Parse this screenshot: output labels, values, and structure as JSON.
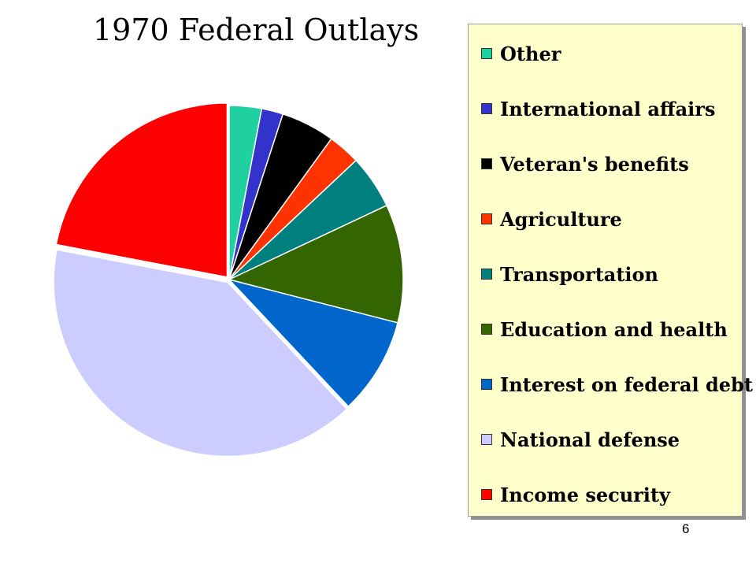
{
  "page_number": "6",
  "chart_data": {
    "type": "pie",
    "title": "1970 Federal Outlays",
    "legend_position": "right",
    "slices": [
      {
        "label": "Other",
        "value": 3,
        "color": "#1fd1a0"
      },
      {
        "label": "International affairs",
        "value": 2,
        "color": "#3333cc"
      },
      {
        "label": "Veteran's benefits",
        "value": 5,
        "color": "#000000"
      },
      {
        "label": "Agriculture",
        "value": 3,
        "color": "#ff3300"
      },
      {
        "label": "Transportation",
        "value": 5,
        "color": "#007f7f"
      },
      {
        "label": "Education and health",
        "value": 11,
        "color": "#336600"
      },
      {
        "label": "Interest on federal debt",
        "value": 9,
        "color": "#0066cc"
      },
      {
        "label": "National defense",
        "value": 40,
        "color": "#ccccff"
      },
      {
        "label": "Income security",
        "value": 22,
        "color": "#ff0000"
      }
    ]
  }
}
